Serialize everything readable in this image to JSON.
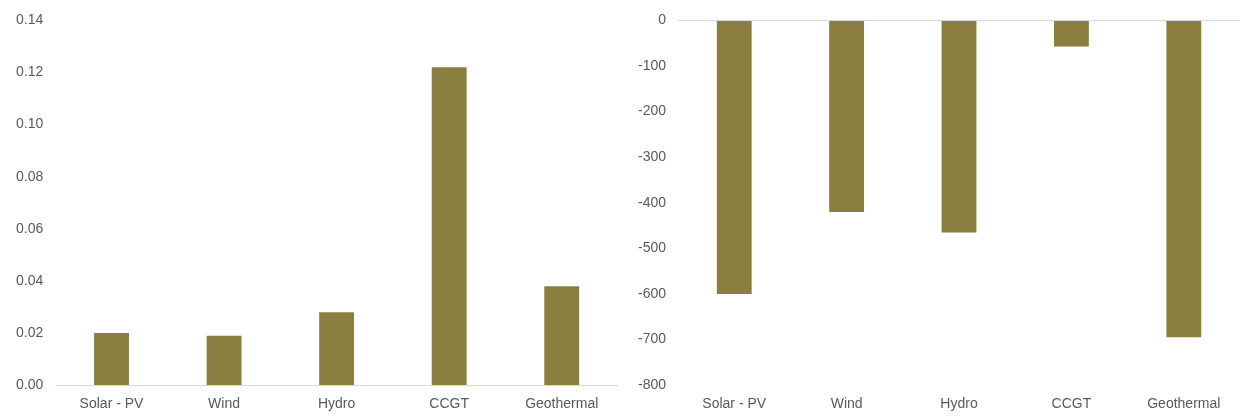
{
  "chart_data": [
    {
      "type": "bar",
      "categories": [
        "Solar - PV",
        "Wind",
        "Hydro",
        "CCGT",
        "Geothermal"
      ],
      "values": [
        0.02,
        0.019,
        0.028,
        0.122,
        0.038
      ],
      "color": "#8b7f3f",
      "ylim": [
        0,
        0.14
      ],
      "yticks": [
        {
          "value": 0,
          "label": "0.00"
        },
        {
          "value": 0.02,
          "label": "0.02"
        },
        {
          "value": 0.04,
          "label": "0.04"
        },
        {
          "value": 0.06,
          "label": "0.06"
        },
        {
          "value": 0.08,
          "label": "0.08"
        },
        {
          "value": 0.1,
          "label": "0.10"
        },
        {
          "value": 0.12,
          "label": "0.12"
        },
        {
          "value": 0.14,
          "label": "0.14"
        }
      ]
    },
    {
      "type": "bar",
      "categories": [
        "Solar - PV",
        "Wind",
        "Hydro",
        "CCGT",
        "Geothermal"
      ],
      "values": [
        -600,
        -420,
        -465,
        -57,
        -695
      ],
      "color": "#8b7f3f",
      "ylim": [
        -800,
        0
      ],
      "yticks": [
        -800,
        -700,
        -600,
        -500,
        -400,
        -300,
        -200,
        -100,
        0
      ]
    }
  ]
}
